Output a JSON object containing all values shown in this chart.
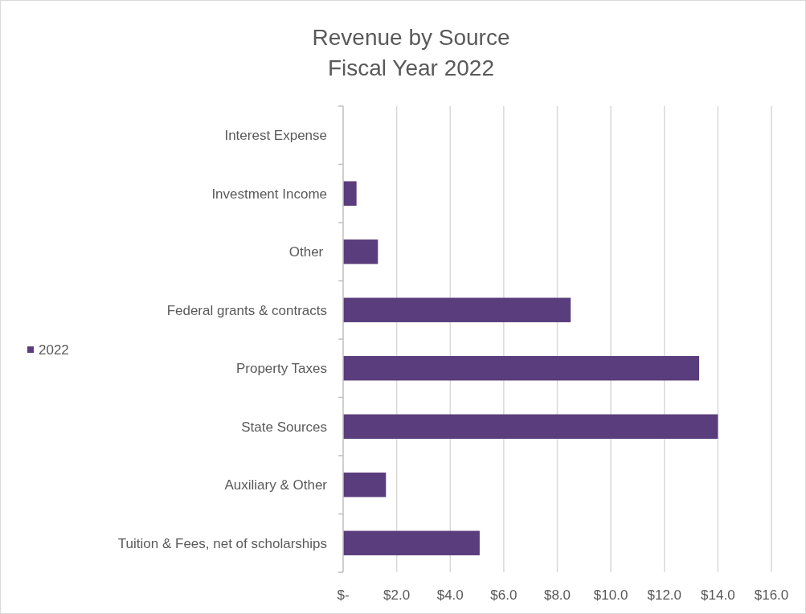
{
  "chart_data": {
    "type": "bar",
    "orientation": "horizontal",
    "title": "Revenue by Source\nFiscal Year 2022",
    "categories": [
      "Interest Expense",
      "Investment Income",
      "Other ",
      "Federal grants & contracts",
      "Property Taxes",
      "State Sources",
      "Auxiliary & Other",
      "Tuition & Fees, net of scholarships"
    ],
    "series": [
      {
        "name": "2022",
        "color": "#5a3d7c",
        "values": [
          0,
          0.5,
          1.3,
          8.5,
          13.3,
          14.0,
          1.6,
          5.1
        ]
      }
    ],
    "xlim": [
      0,
      16
    ],
    "xticks": [
      {
        "value": 0,
        "label": "$-"
      },
      {
        "value": 2,
        "label": "$2.0"
      },
      {
        "value": 4,
        "label": "$4.0"
      },
      {
        "value": 6,
        "label": "$6.0"
      },
      {
        "value": 8,
        "label": "$8.0"
      },
      {
        "value": 10,
        "label": "$10.0"
      },
      {
        "value": 12,
        "label": "$12.0"
      },
      {
        "value": 14,
        "label": "$14.0"
      },
      {
        "value": 16,
        "label": "$16.0"
      }
    ],
    "grid": "x",
    "legend": "left"
  }
}
